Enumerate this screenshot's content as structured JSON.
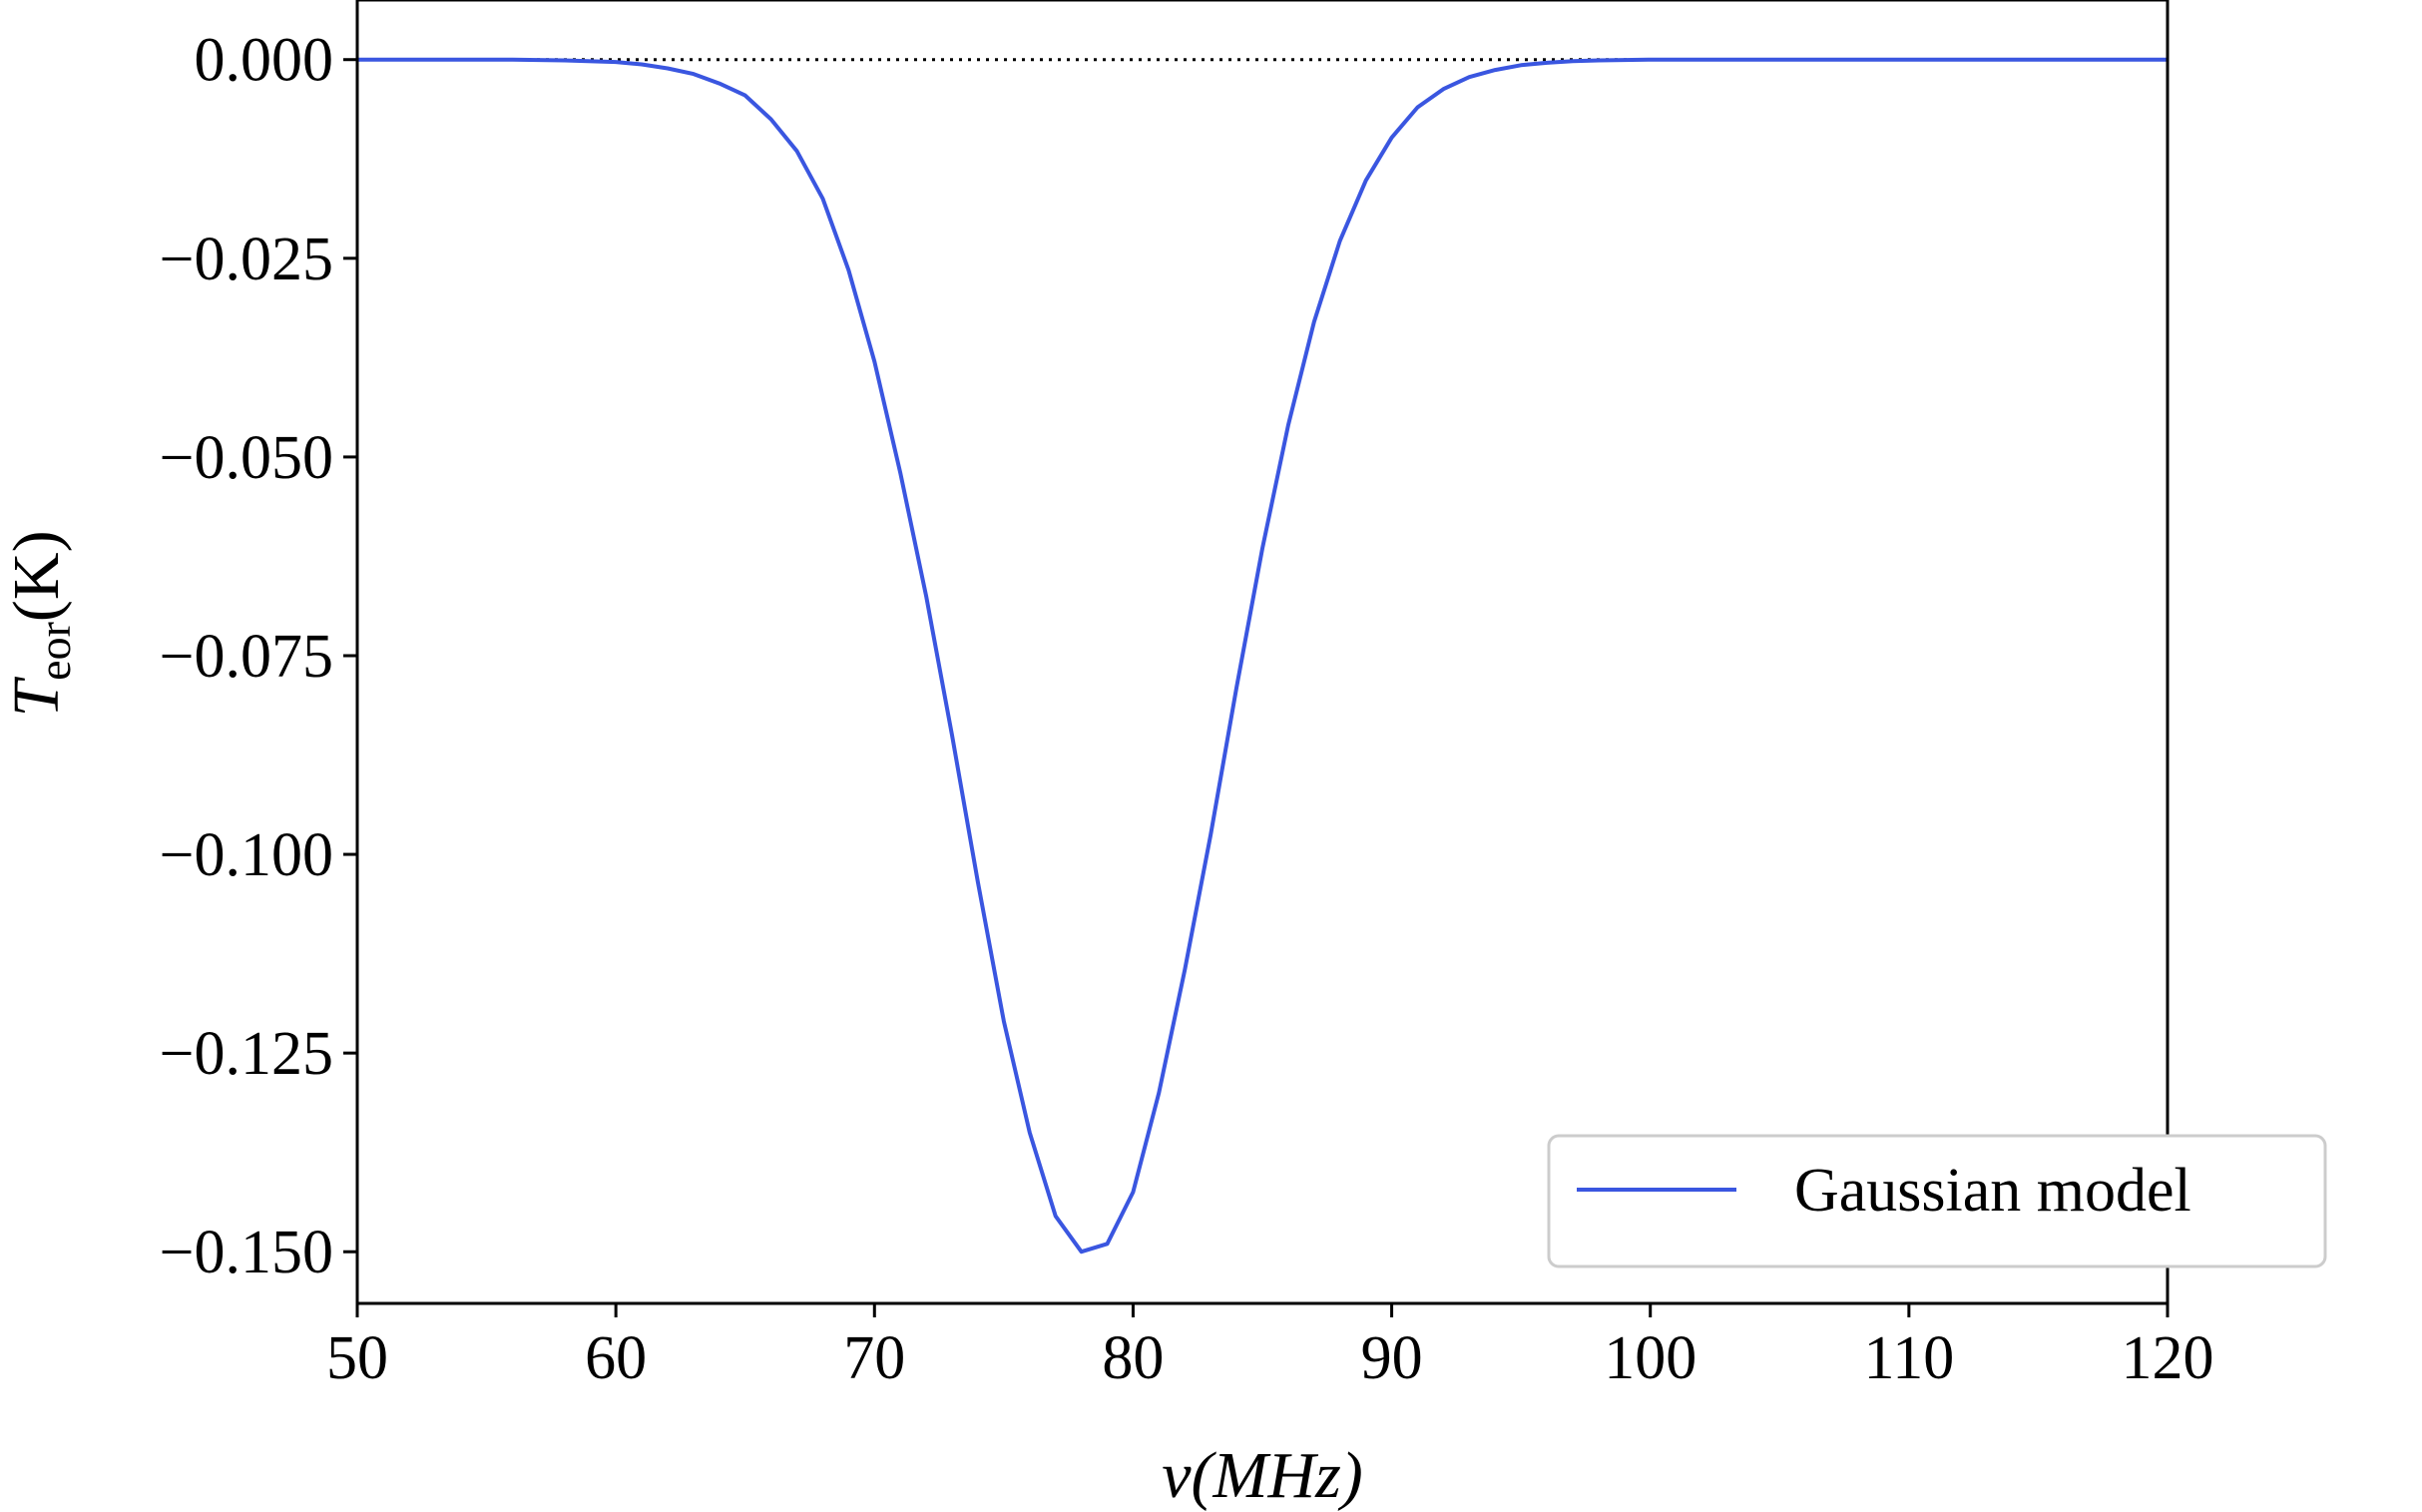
{
  "chart_data": {
    "type": "line",
    "title": "",
    "xlabel": "ν(MHz)",
    "ylabel": {
      "main": "T",
      "subscript": "eor",
      "unit": "(K)"
    },
    "xlim": [
      50,
      120
    ],
    "ylim": [
      -0.1565,
      0.0075
    ],
    "xticks": [
      50,
      60,
      70,
      80,
      90,
      100,
      110,
      120
    ],
    "xtick_labels": [
      "50",
      "60",
      "70",
      "80",
      "90",
      "100",
      "110",
      "120"
    ],
    "yticks": [
      0.0,
      -0.025,
      -0.05,
      -0.075,
      -0.1,
      -0.125,
      -0.15
    ],
    "ytick_labels": [
      "0.000",
      "−0.025",
      "−0.050",
      "−0.075",
      "−0.100",
      "−0.125",
      "−0.150"
    ],
    "grid": false,
    "legend_position": "lower-right",
    "reference_line": {
      "y": 0,
      "style": "dotted",
      "color": "#000000"
    },
    "series": [
      {
        "name": "Gaussian model",
        "color": "#3a56e0",
        "x": [
          50,
          52,
          54,
          56,
          58,
          60,
          61,
          62,
          63,
          64,
          65,
          66,
          67,
          68,
          69,
          70,
          71,
          72,
          73,
          74,
          75,
          76,
          77,
          78,
          79,
          80,
          81,
          82,
          83,
          84,
          85,
          86,
          87,
          88,
          89,
          90,
          91,
          92,
          93,
          94,
          95,
          96,
          97,
          98,
          100,
          105,
          110,
          115,
          120
        ],
        "y": [
          0.0,
          0.0,
          0.0,
          0.0,
          -0.0001,
          -0.0003,
          -0.0006,
          -0.0011,
          -0.0018,
          -0.003,
          -0.0045,
          -0.0075,
          -0.0115,
          -0.0175,
          -0.0265,
          -0.038,
          -0.052,
          -0.0675,
          -0.085,
          -0.1035,
          -0.121,
          -0.135,
          -0.1455,
          -0.15,
          -0.149,
          -0.1425,
          -0.13,
          -0.1145,
          -0.0975,
          -0.079,
          -0.0615,
          -0.046,
          -0.033,
          -0.0228,
          -0.0152,
          -0.0098,
          -0.006,
          -0.0037,
          -0.0022,
          -0.0013,
          -0.0007,
          -0.0004,
          -0.0002,
          -0.0001,
          0.0,
          0.0,
          0.0,
          0.0,
          0.0
        ]
      }
    ]
  }
}
